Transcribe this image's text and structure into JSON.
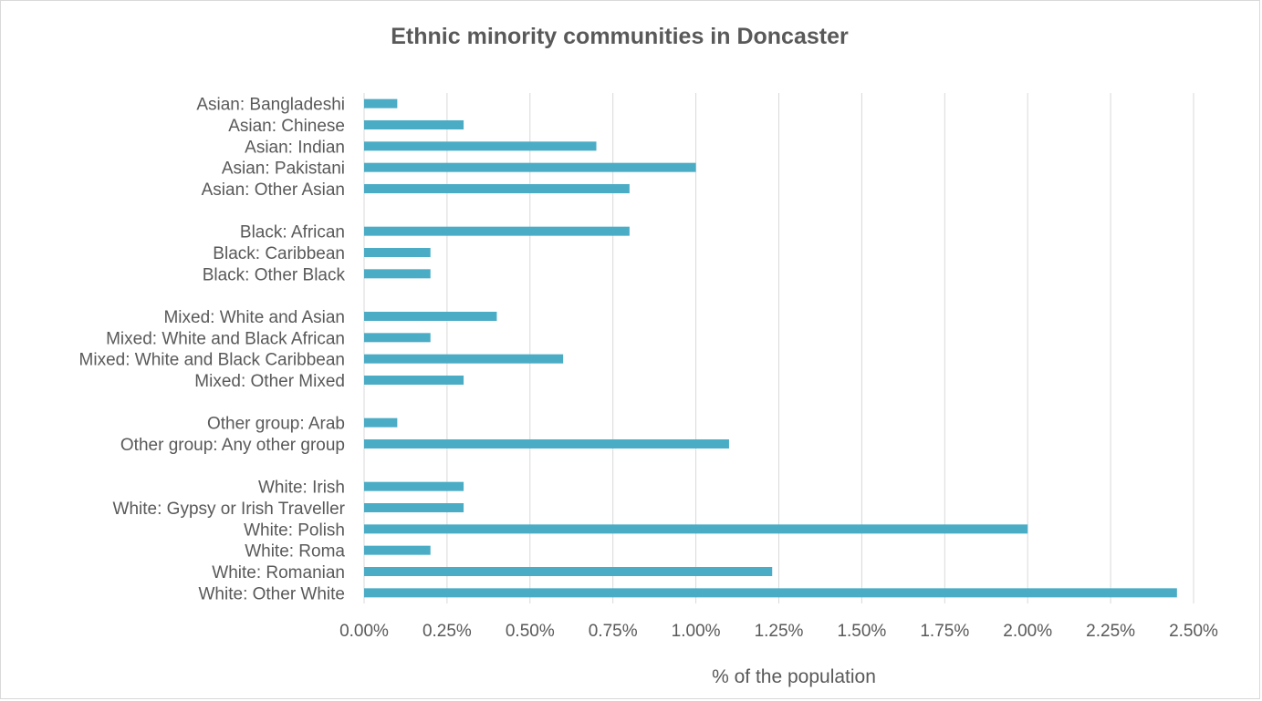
{
  "chart_data": {
    "type": "bar",
    "orientation": "horizontal",
    "title": "Ethnic minority communities in Doncaster",
    "xlabel": "% of the population",
    "ylabel": "",
    "xlim": [
      0,
      2.5
    ],
    "x_ticks": [
      "0.00%",
      "0.25%",
      "0.50%",
      "0.75%",
      "1.00%",
      "1.25%",
      "1.50%",
      "1.75%",
      "2.00%",
      "2.25%",
      "2.50%"
    ],
    "grid": true,
    "color": "#4bacc6",
    "categories": [
      "Asian: Bangladeshi",
      "Asian: Chinese",
      "Asian: Indian",
      "Asian: Pakistani",
      "Asian: Other Asian",
      "Black: African",
      "Black: Caribbean",
      "Black: Other Black",
      "Mixed: White and Asian",
      "Mixed: White and Black African",
      "Mixed: White and Black Caribbean",
      "Mixed: Other Mixed",
      "Other group: Arab",
      "Other group: Any other group",
      "White: Irish",
      "White: Gypsy or Irish Traveller",
      "White: Polish",
      "White: Roma",
      "White: Romanian",
      "White: Other White"
    ],
    "groups": [
      5,
      3,
      4,
      2,
      6
    ],
    "values": [
      0.1,
      0.3,
      0.7,
      1.0,
      0.8,
      0.8,
      0.2,
      0.2,
      0.4,
      0.2,
      0.6,
      0.3,
      0.1,
      1.1,
      0.3,
      0.3,
      2.0,
      0.2,
      1.23,
      2.45
    ]
  }
}
